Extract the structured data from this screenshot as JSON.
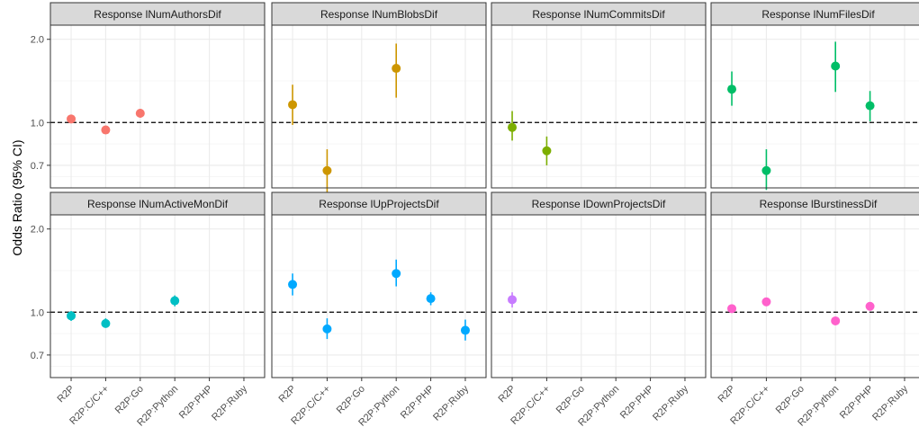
{
  "chart_data": {
    "type": "scatter",
    "ylabel": "Odds Ratio (95% CI)",
    "y_scale": "log",
    "ylim": [
      0.58,
      2.25
    ],
    "y_ticks": [
      0.7,
      1.0,
      2.0
    ],
    "y_tick_labels": [
      "0.7",
      "1.0",
      "2.0"
    ],
    "reference_line": 1.0,
    "categories": [
      "R2P",
      "R2P:C/C++",
      "R2P:Go",
      "R2P:Python",
      "R2P:PHP",
      "R2P:Ruby"
    ],
    "grid": true,
    "legend": "none",
    "panels": [
      {
        "title": "Response lNumAuthorsDif",
        "color": "#F8766D",
        "points": [
          {
            "x": "R2P",
            "or": 1.03,
            "lo": 1.0,
            "hi": 1.06
          },
          {
            "x": "R2P:C/C++",
            "or": 0.94,
            "lo": 0.91,
            "hi": 0.97
          },
          {
            "x": "R2P:Go",
            "or": 1.08,
            "lo": 1.04,
            "hi": 1.12
          }
        ]
      },
      {
        "title": "Response lNumBlobsDif",
        "color": "#CD9600",
        "points": [
          {
            "x": "R2P",
            "or": 1.16,
            "lo": 0.98,
            "hi": 1.37
          },
          {
            "x": "R2P:C/C++",
            "or": 0.67,
            "lo": 0.56,
            "hi": 0.8
          },
          {
            "x": "R2P:Python",
            "or": 1.57,
            "lo": 1.23,
            "hi": 1.93
          }
        ]
      },
      {
        "title": "Response lNumCommitsDif",
        "color": "#7CAE00",
        "points": [
          {
            "x": "R2P",
            "or": 0.96,
            "lo": 0.86,
            "hi": 1.1
          },
          {
            "x": "R2P:C/C++",
            "or": 0.79,
            "lo": 0.7,
            "hi": 0.89
          }
        ]
      },
      {
        "title": "Response lNumFilesDif",
        "color": "#00BE67",
        "points": [
          {
            "x": "R2P",
            "or": 1.32,
            "lo": 1.15,
            "hi": 1.53
          },
          {
            "x": "R2P:C/C++",
            "or": 0.67,
            "lo": 0.57,
            "hi": 0.8
          },
          {
            "x": "R2P:Python",
            "or": 1.6,
            "lo": 1.29,
            "hi": 1.96
          },
          {
            "x": "R2P:PHP",
            "or": 1.15,
            "lo": 1.01,
            "hi": 1.3
          }
        ]
      },
      {
        "title": "Response lNumActiveMonDif",
        "color": "#00BFC4",
        "points": [
          {
            "x": "R2P",
            "or": 0.97,
            "lo": 0.93,
            "hi": 1.01
          },
          {
            "x": "R2P:C/C++",
            "or": 0.91,
            "lo": 0.88,
            "hi": 0.95
          },
          {
            "x": "R2P:Python",
            "or": 1.1,
            "lo": 1.05,
            "hi": 1.15
          }
        ]
      },
      {
        "title": "Response lUpProjectsDif",
        "color": "#00A9FF",
        "points": [
          {
            "x": "R2P",
            "or": 1.26,
            "lo": 1.15,
            "hi": 1.38
          },
          {
            "x": "R2P:C/C++",
            "or": 0.87,
            "lo": 0.8,
            "hi": 0.95
          },
          {
            "x": "R2P:Python",
            "or": 1.38,
            "lo": 1.24,
            "hi": 1.55
          },
          {
            "x": "R2P:PHP",
            "or": 1.12,
            "lo": 1.06,
            "hi": 1.18
          },
          {
            "x": "R2P:Ruby",
            "or": 0.86,
            "lo": 0.79,
            "hi": 0.94
          }
        ]
      },
      {
        "title": "Response lDownProjectsDif",
        "color": "#C77CFF",
        "points": [
          {
            "x": "R2P",
            "or": 1.11,
            "lo": 1.04,
            "hi": 1.18
          }
        ]
      },
      {
        "title": "Response lBurstinessDif",
        "color": "#FF61CC",
        "points": [
          {
            "x": "R2P",
            "or": 1.03,
            "lo": 1.01,
            "hi": 1.05
          },
          {
            "x": "R2P:C/C++",
            "or": 1.09,
            "lo": 1.07,
            "hi": 1.11
          },
          {
            "x": "R2P:Python",
            "or": 0.93,
            "lo": 0.9,
            "hi": 0.96
          },
          {
            "x": "R2P:PHP",
            "or": 1.05,
            "lo": 1.03,
            "hi": 1.07
          }
        ]
      }
    ]
  }
}
